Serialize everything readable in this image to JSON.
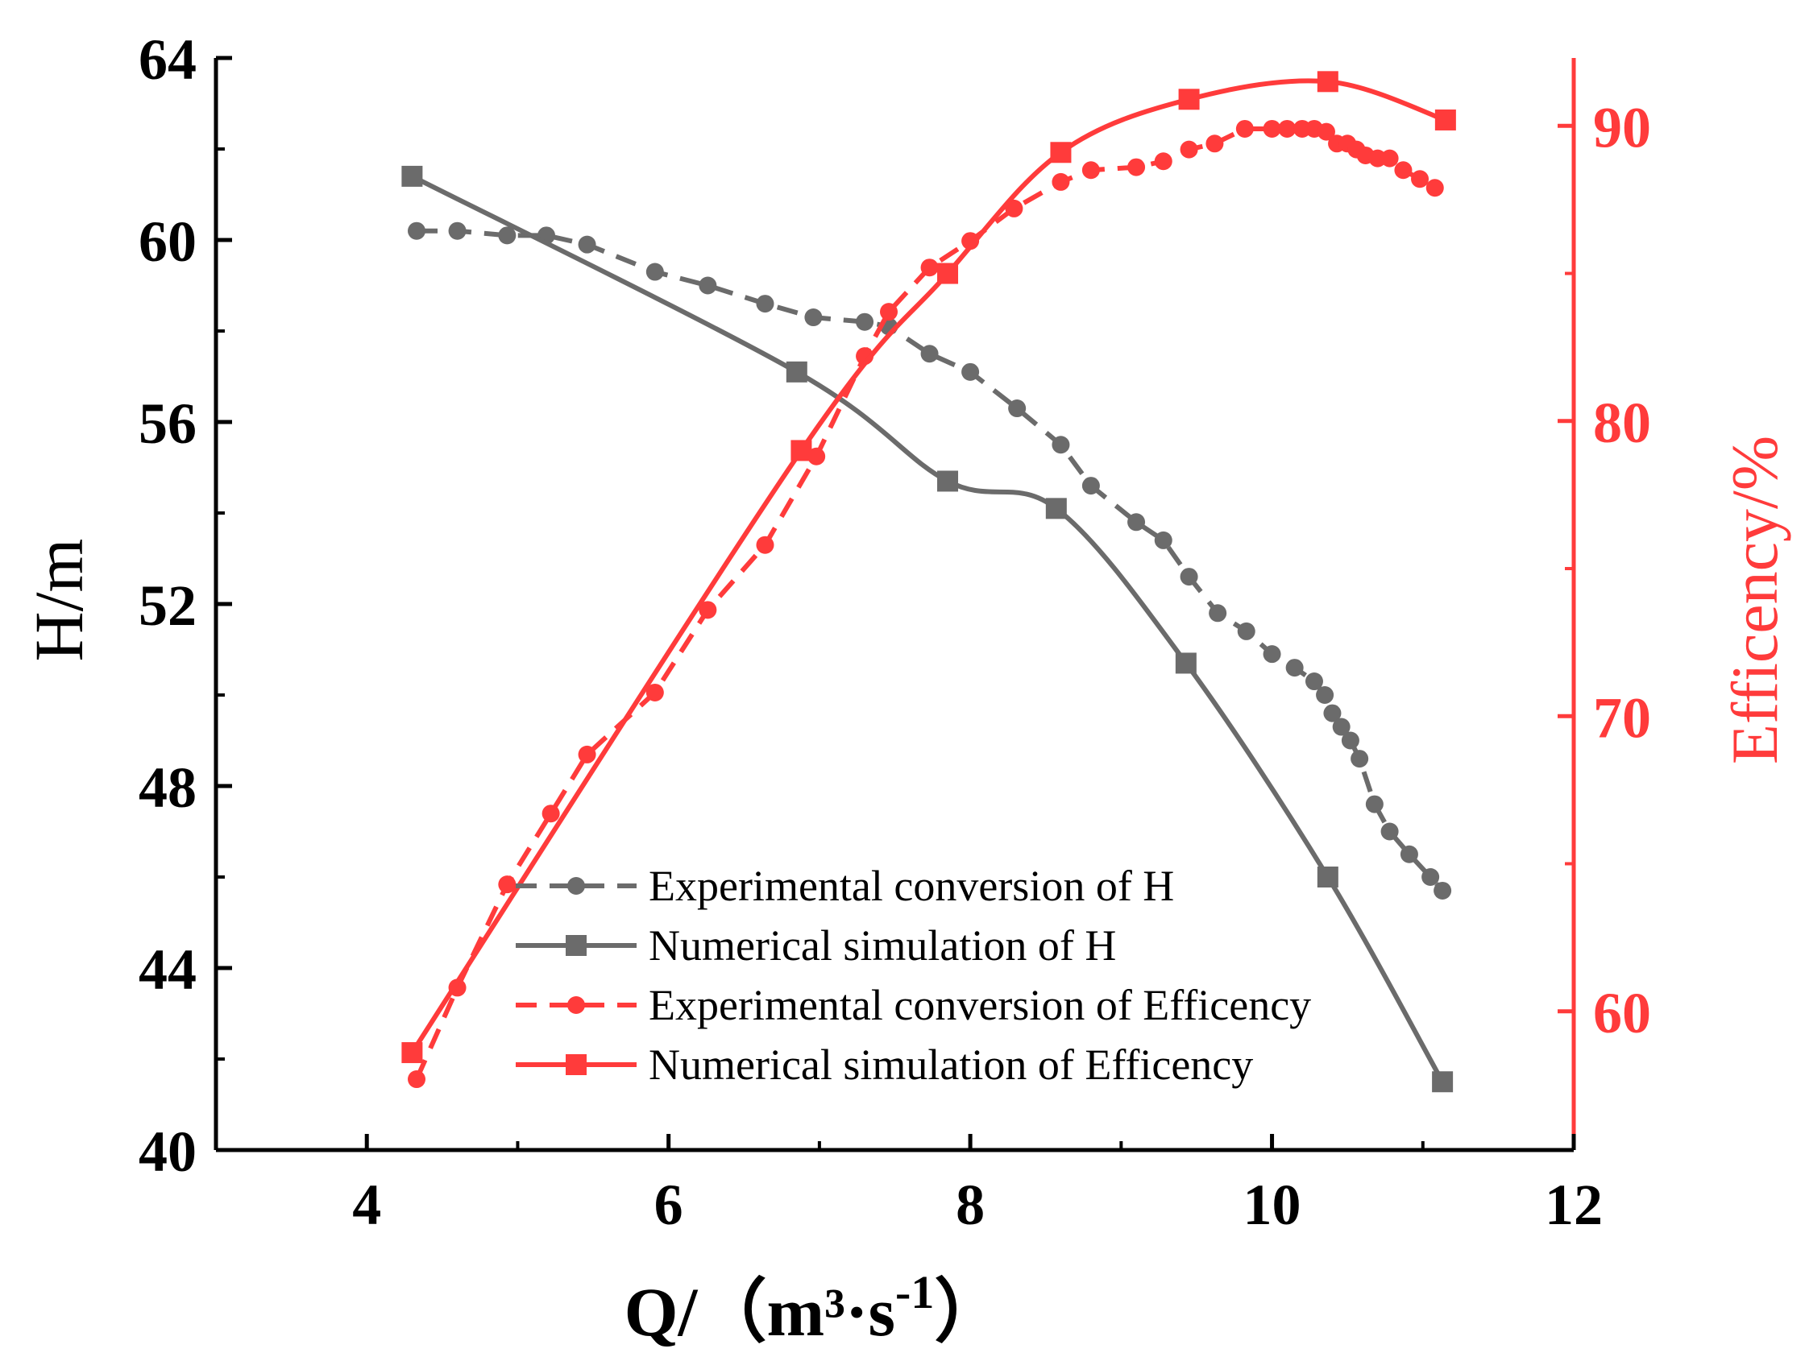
{
  "chart_data": {
    "type": "line",
    "title": "",
    "xlabel": "Q/（m³·s",
    "xlabel_sup": "-1",
    "xlabel_close": "）",
    "ylabel_left": "H/m",
    "ylabel_right": "Efficency/%",
    "xlim": [
      3,
      12
    ],
    "ylim_left": [
      40,
      64
    ],
    "ylim_right": [
      55.3,
      92.3
    ],
    "x_ticks": [
      4,
      6,
      8,
      10,
      12
    ],
    "x_tick_labels": [
      "4",
      "6",
      "8",
      "10",
      "12"
    ],
    "y_left_ticks": [
      40,
      44,
      48,
      52,
      56,
      60,
      64
    ],
    "y_left_tick_labels": [
      "40",
      "44",
      "48",
      "52",
      "56",
      "60",
      "64"
    ],
    "y_right_ticks": [
      60,
      70,
      80,
      90
    ],
    "y_right_tick_labels": [
      "60",
      "70",
      "80",
      "90"
    ],
    "legend_position": "lower-center",
    "colors": {
      "gray": "#6b6b6b",
      "red": "#ff3b3b",
      "axis": "#000000",
      "right_axis": "#ff3b3b"
    },
    "series": [
      {
        "name": "Experimental conversion of H",
        "axis": "left",
        "color": "#6b6b6b",
        "style": "dashed",
        "marker": "circle",
        "x": [
          4.33,
          4.6,
          4.93,
          5.19,
          5.46,
          5.91,
          6.26,
          6.64,
          6.96,
          7.3,
          7.46,
          7.73,
          8.0,
          8.31,
          8.6,
          8.8,
          9.1,
          9.28,
          9.45,
          9.64,
          9.83,
          10.0,
          10.15,
          10.28,
          10.35,
          10.4,
          10.46,
          10.52,
          10.58,
          10.68,
          10.78,
          10.91,
          11.05,
          11.13
        ],
        "y": [
          60.2,
          60.2,
          60.1,
          60.1,
          59.9,
          59.3,
          59.0,
          58.6,
          58.3,
          58.2,
          58.1,
          57.5,
          57.1,
          56.3,
          55.5,
          54.6,
          53.8,
          53.4,
          52.6,
          51.8,
          51.4,
          50.9,
          50.6,
          50.3,
          50.0,
          49.6,
          49.3,
          49.0,
          48.6,
          47.6,
          47.0,
          46.5,
          46.0,
          45.7
        ]
      },
      {
        "name": "Numerical simulation of H",
        "axis": "left",
        "color": "#6b6b6b",
        "style": "solid",
        "marker": "square",
        "x": [
          4.3,
          6.85,
          7.85,
          8.57,
          9.43,
          10.37,
          11.13
        ],
        "y": [
          61.4,
          57.1,
          54.7,
          54.1,
          50.7,
          46.0,
          41.5
        ]
      },
      {
        "name": "Experimental conversion of Efficency",
        "axis": "right",
        "color": "#ff3b3b",
        "style": "dashed",
        "marker": "circle",
        "x": [
          4.33,
          4.6,
          4.93,
          5.22,
          5.46,
          5.91,
          6.26,
          6.64,
          6.98,
          7.3,
          7.46,
          7.73,
          8.0,
          8.29,
          8.6,
          8.8,
          9.1,
          9.28,
          9.45,
          9.62,
          9.82,
          10.0,
          10.1,
          10.2,
          10.28,
          10.36,
          10.43,
          10.5,
          10.56,
          10.62,
          10.7,
          10.78,
          10.87,
          10.98,
          11.08
        ],
        "y": [
          57.7,
          60.8,
          64.3,
          66.7,
          68.7,
          70.8,
          73.6,
          75.8,
          78.8,
          82.2,
          83.7,
          85.2,
          86.1,
          87.2,
          88.1,
          88.5,
          88.6,
          88.8,
          89.2,
          89.4,
          89.9,
          89.9,
          89.9,
          89.9,
          89.9,
          89.8,
          89.4,
          89.4,
          89.2,
          89.0,
          88.9,
          88.9,
          88.5,
          88.2,
          87.9
        ]
      },
      {
        "name": "Numerical simulation of Efficency",
        "axis": "right",
        "color": "#ff3b3b",
        "style": "solid",
        "marker": "square",
        "x": [
          4.3,
          6.88,
          7.85,
          8.6,
          9.45,
          10.37,
          11.15
        ],
        "y": [
          58.6,
          79.0,
          85.0,
          89.1,
          90.9,
          91.5,
          90.2
        ]
      }
    ]
  }
}
